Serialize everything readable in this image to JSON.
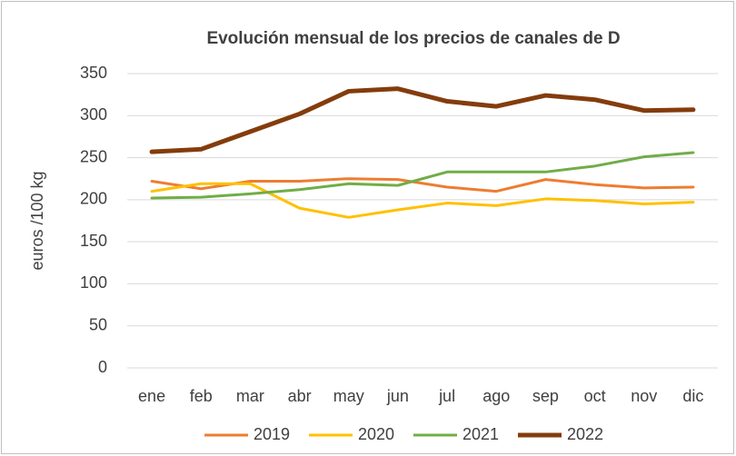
{
  "chart_data": {
    "type": "line",
    "title": "Evolución mensual de los precios de canales de D",
    "y_label": "euros /100 kg",
    "categories": [
      "ene",
      "feb",
      "mar",
      "abr",
      "may",
      "jun",
      "jul",
      "ago",
      "sep",
      "oct",
      "nov",
      "dic"
    ],
    "series": [
      {
        "name": "2019",
        "color": "#ED7D31",
        "values": [
          222,
          213,
          222,
          222,
          225,
          224,
          215,
          210,
          224,
          218,
          214,
          215
        ]
      },
      {
        "name": "2020",
        "color": "#FFC000",
        "values": [
          210,
          219,
          219,
          190,
          179,
          188,
          196,
          193,
          201,
          199,
          195,
          197
        ]
      },
      {
        "name": "2021",
        "color": "#70AD47",
        "values": [
          202,
          203,
          207,
          212,
          219,
          217,
          233,
          233,
          233,
          240,
          251,
          256
        ]
      },
      {
        "name": "2022",
        "color": "#843C0C",
        "values": [
          257,
          260,
          281,
          302,
          329,
          332,
          317,
          311,
          324,
          319,
          306,
          307
        ]
      }
    ],
    "ylim": [
      0,
      350
    ],
    "yticks": [
      0,
      50,
      100,
      150,
      200,
      250,
      300,
      350
    ],
    "grid": true,
    "legend": "bottom"
  }
}
